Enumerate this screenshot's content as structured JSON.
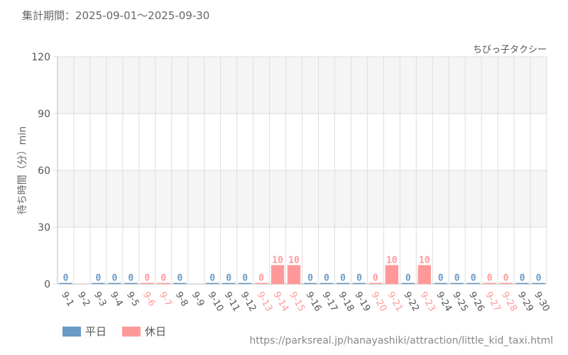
{
  "period_label": "集計期間：2025-09-01～2025-09-30",
  "source_url": "https://parksreal.jp/hanayashiki/attraction/little_kid_taxi.html",
  "colors": {
    "weekday": "#6b9ac4",
    "holiday": "#ff9999",
    "grid": "#dddddd",
    "band": "#f5f5f5"
  },
  "legend": [
    {
      "label": "平日",
      "color": "#6b9ac4"
    },
    {
      "label": "休日",
      "color": "#ff9999"
    }
  ],
  "chart_data": {
    "type": "bar",
    "title": "ちびっ子タクシー",
    "ylabel": "待ち時間（分）min",
    "xlabel": "",
    "ylim": [
      0,
      120
    ],
    "yticks": [
      0,
      30,
      60,
      90,
      120
    ],
    "grid": true,
    "legend_position": "bottom-left",
    "categories": [
      "9-1",
      "9-2",
      "9-3",
      "9-4",
      "9-5",
      "9-6",
      "9-7",
      "9-8",
      "9-9",
      "9-10",
      "9-11",
      "9-12",
      "9-13",
      "9-14",
      "9-15",
      "9-16",
      "9-17",
      "9-18",
      "9-19",
      "9-20",
      "9-21",
      "9-22",
      "9-23",
      "9-24",
      "9-25",
      "9-26",
      "9-27",
      "9-28",
      "9-29",
      "9-30"
    ],
    "values": [
      0,
      null,
      0,
      0,
      0,
      0,
      0,
      0,
      null,
      0,
      0,
      0,
      0,
      10,
      10,
      0,
      0,
      0,
      0,
      0,
      10,
      0,
      10,
      0,
      0,
      0,
      0,
      0,
      0,
      0
    ],
    "day_type": [
      "weekday",
      "weekday",
      "weekday",
      "weekday",
      "weekday",
      "holiday",
      "holiday",
      "weekday",
      "weekday",
      "weekday",
      "weekday",
      "weekday",
      "holiday",
      "holiday",
      "holiday",
      "weekday",
      "weekday",
      "weekday",
      "weekday",
      "holiday",
      "holiday",
      "weekday",
      "holiday",
      "weekday",
      "weekday",
      "weekday",
      "holiday",
      "holiday",
      "weekday",
      "weekday"
    ]
  }
}
